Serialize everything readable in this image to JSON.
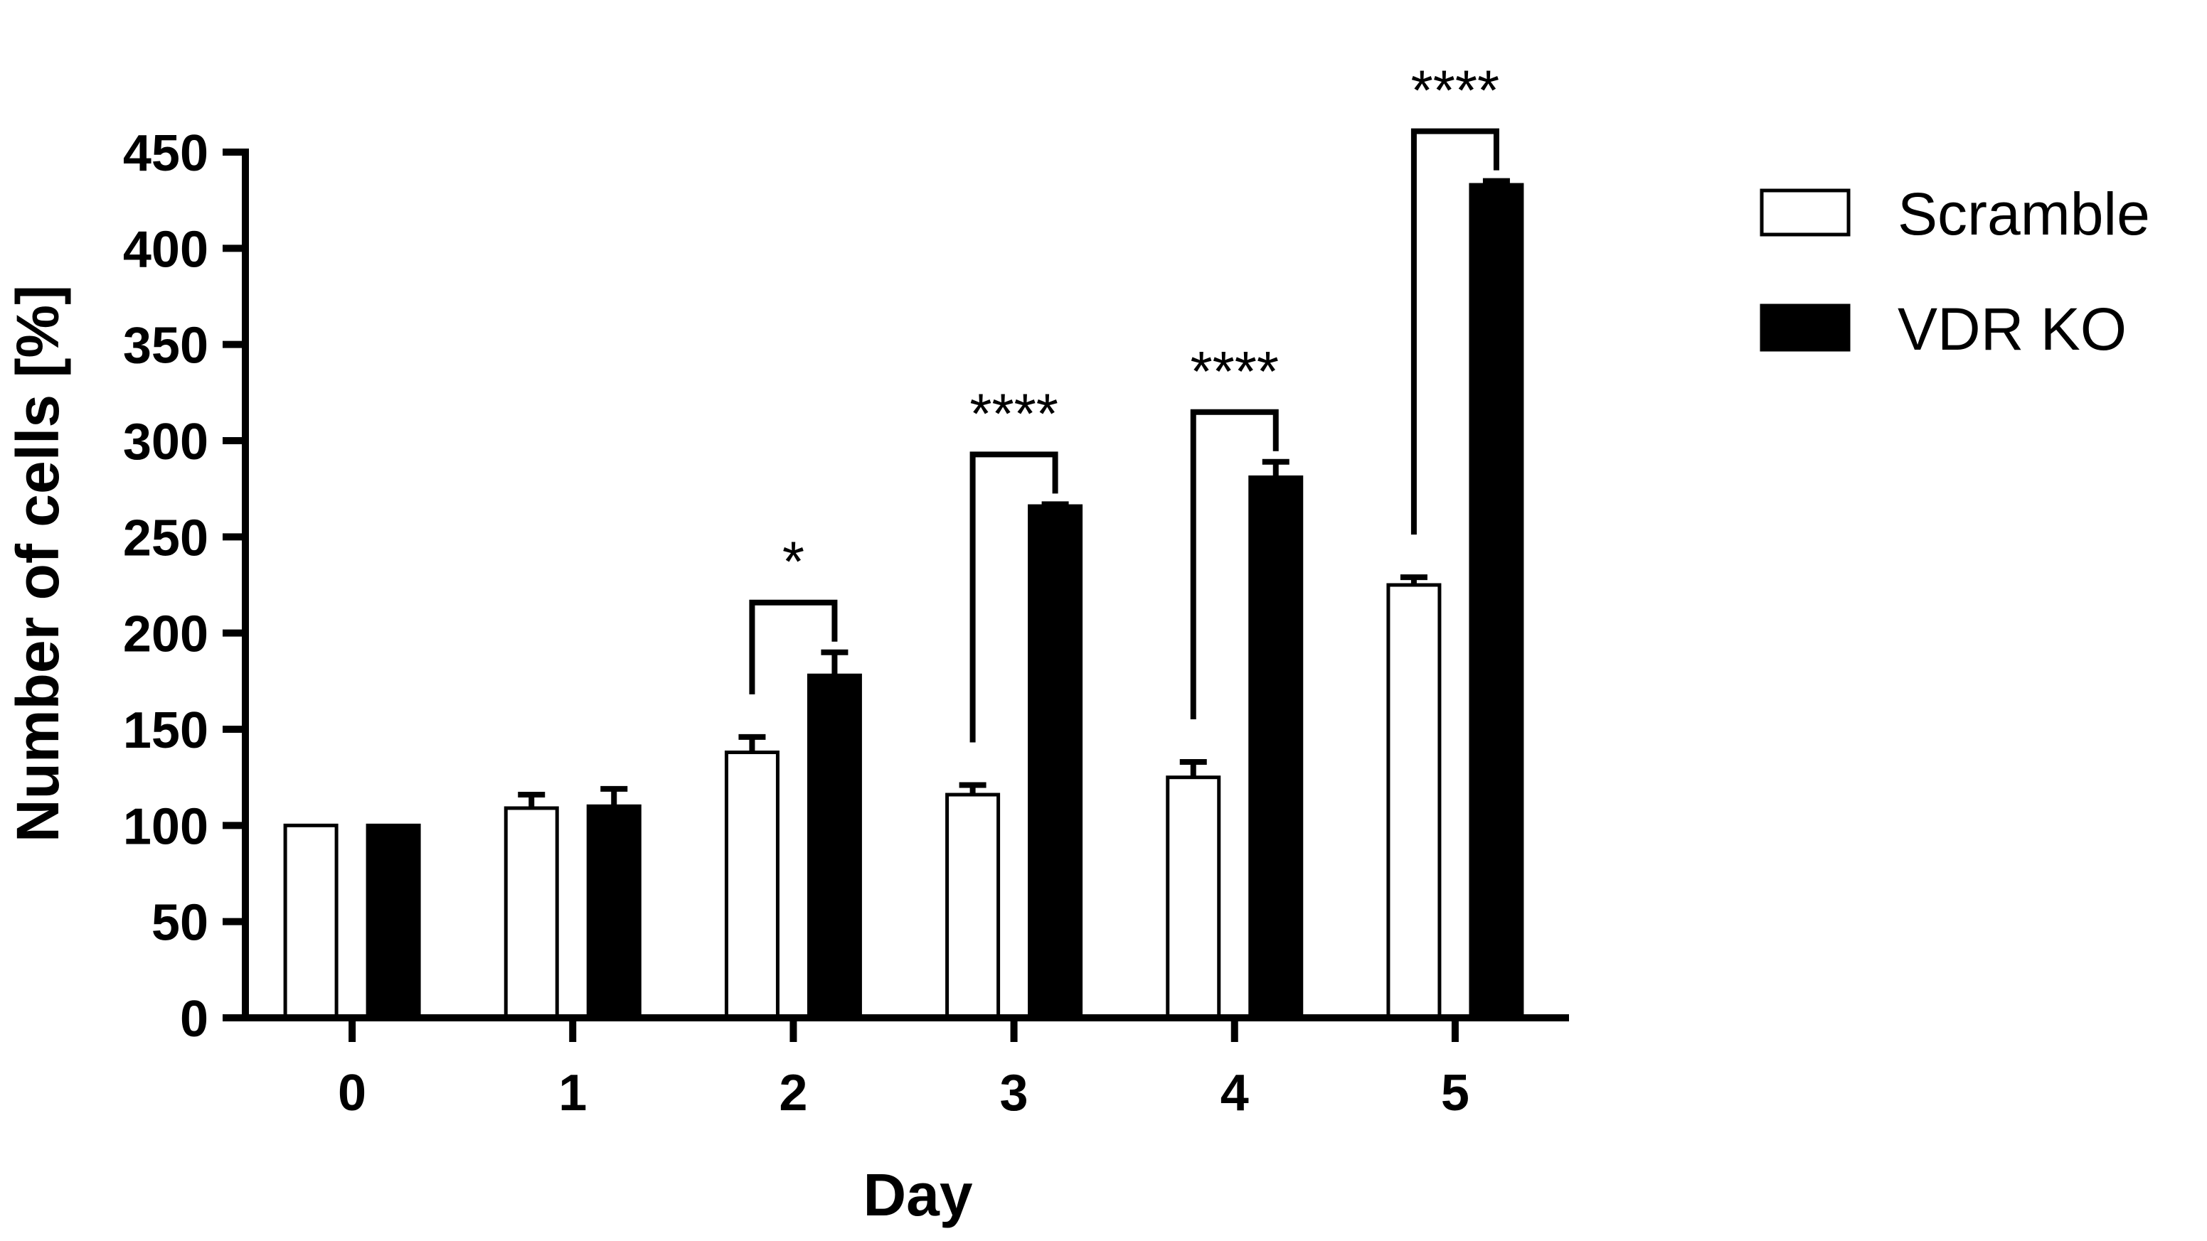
{
  "chart_data": {
    "type": "bar",
    "title": "",
    "xlabel": "Day",
    "ylabel": "Number of cells [%]",
    "categories": [
      "0",
      "1",
      "2",
      "3",
      "4",
      "5"
    ],
    "ylim": [
      0,
      450
    ],
    "yticks": [
      0,
      50,
      100,
      150,
      200,
      250,
      300,
      350,
      400,
      450
    ],
    "grid": false,
    "legend": "top-right",
    "series": [
      {
        "name": "Scramble",
        "fill": "#ffffff",
        "stroke": "#000000",
        "values": [
          100,
          109,
          138,
          116,
          125,
          225
        ],
        "errors": [
          0,
          7,
          8,
          5,
          8,
          4
        ]
      },
      {
        "name": "VDR KO",
        "fill": "#000000",
        "stroke": "#000000",
        "values": [
          100,
          110,
          178,
          266,
          281,
          433
        ],
        "errors": [
          0,
          9,
          12,
          1,
          8,
          2
        ]
      }
    ],
    "significance": [
      {
        "category": "2",
        "label": "*"
      },
      {
        "category": "3",
        "label": "****"
      },
      {
        "category": "4",
        "label": "****"
      },
      {
        "category": "5",
        "label": "****"
      }
    ]
  }
}
